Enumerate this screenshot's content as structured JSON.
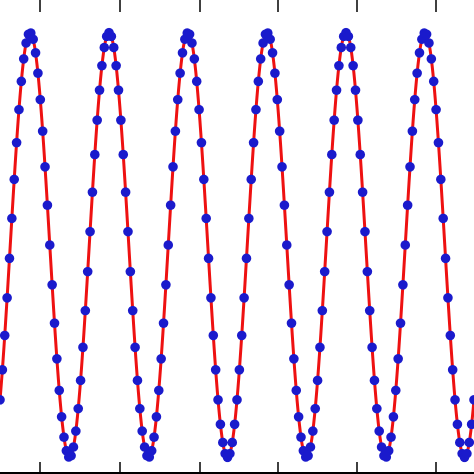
{
  "chart_data": {
    "type": "line",
    "title": "",
    "xlabel": "",
    "ylabel": "",
    "xlim": [
      0,
      6
    ],
    "ylim": [
      -1.05,
      1.05
    ],
    "grid": false,
    "legend": "none",
    "colors": {
      "fit_line": "#ee1111",
      "markers": "#1a1acc",
      "axes": "#000000",
      "background": "#ffffff"
    },
    "series": [
      {
        "style": "line",
        "function": "cosine",
        "amplitude": 1.0,
        "frequency": 1.0,
        "phase": 0.0,
        "x_range": [
          0,
          6
        ],
        "num_points": 600
      },
      {
        "style": "markers",
        "function": "cosine",
        "amplitude": 1.0,
        "frequency": 1.0,
        "phase": 0.0,
        "x_range": [
          0,
          6
        ],
        "num_points": 200
      }
    ]
  }
}
